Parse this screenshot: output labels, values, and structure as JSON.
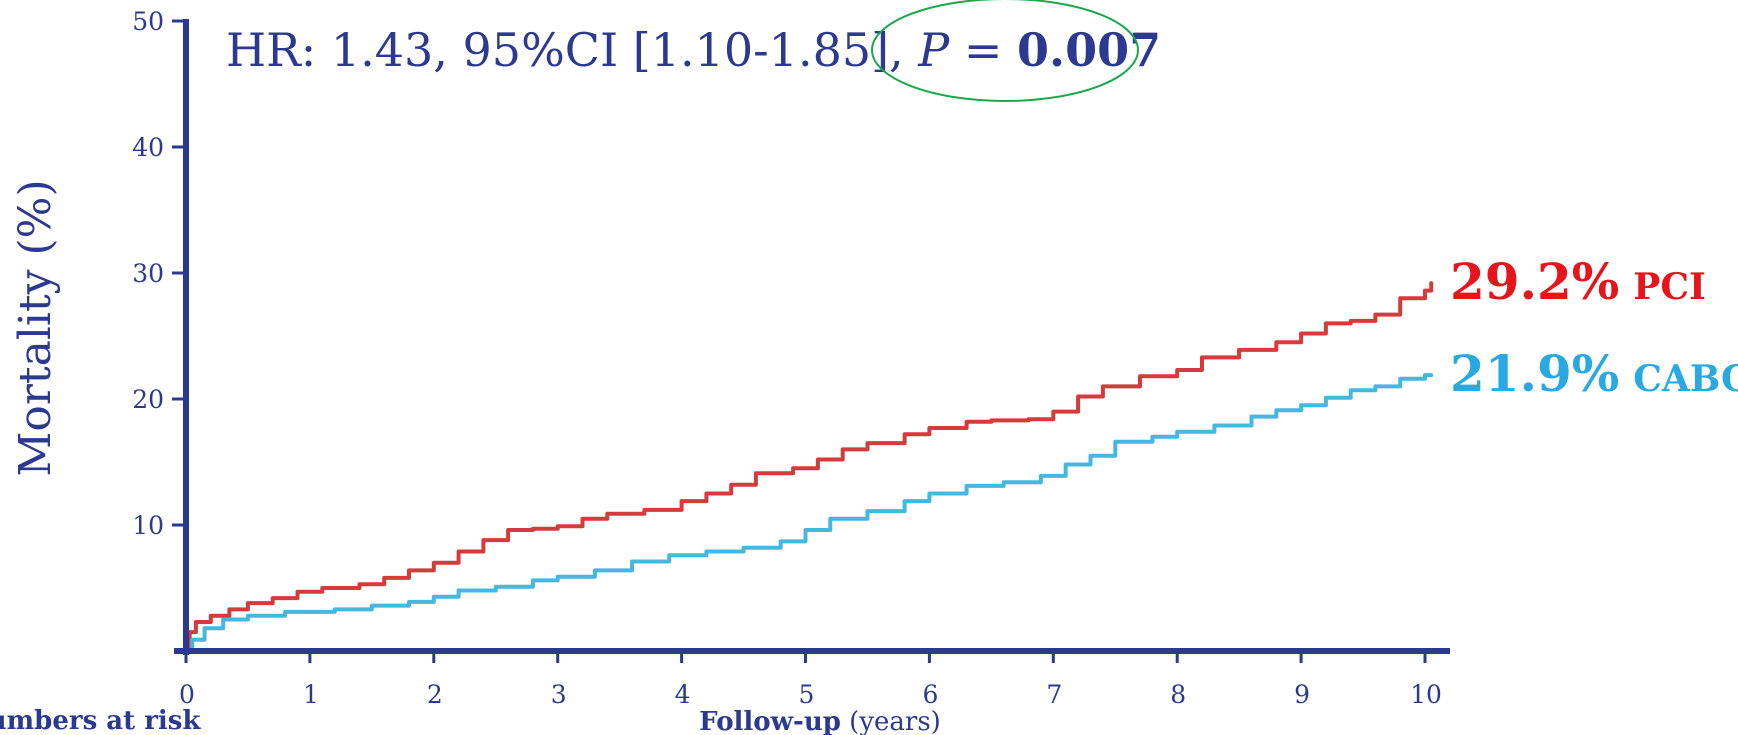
{
  "chart_data": {
    "type": "line",
    "ylabel": "Mortality (%)",
    "xlabel_bold": "Follow-up",
    "xlabel_rest": " (years)",
    "numbers_at_risk_label": "Numbers at risk",
    "xlim": [
      0,
      10
    ],
    "ylim": [
      0,
      50
    ],
    "x_ticks": [
      "0",
      "1",
      "2",
      "3",
      "4",
      "5",
      "6",
      "7",
      "8",
      "9",
      "10"
    ],
    "y_ticks": [
      {
        "value": 10,
        "label": "10"
      },
      {
        "value": 20,
        "label": "20"
      },
      {
        "value": 30,
        "label": "30"
      },
      {
        "value": 40,
        "label": "40"
      },
      {
        "value": 50,
        "label": "50"
      }
    ],
    "annotation": {
      "prefix": "HR: 1.43, 95%CI [1.10-1.85], ",
      "p_symbol": "P",
      "p_equals": " = ",
      "p_value": "0.007",
      "highlight_color": "#1aa84a"
    },
    "series": [
      {
        "name": "PCI",
        "end_label": "29.2%",
        "color": "#e8141c",
        "line_color": "#d73a3a",
        "points": [
          [
            0,
            0
          ],
          [
            0.03,
            1.5
          ],
          [
            0.08,
            2.3
          ],
          [
            0.2,
            2.8
          ],
          [
            0.35,
            3.3
          ],
          [
            0.5,
            3.8
          ],
          [
            0.7,
            4.2
          ],
          [
            0.9,
            4.7
          ],
          [
            1.1,
            5.0
          ],
          [
            1.4,
            5.3
          ],
          [
            1.6,
            5.8
          ],
          [
            1.8,
            6.4
          ],
          [
            2.0,
            7.0
          ],
          [
            2.2,
            7.9
          ],
          [
            2.4,
            8.8
          ],
          [
            2.6,
            9.6
          ],
          [
            2.8,
            9.7
          ],
          [
            3.0,
            9.9
          ],
          [
            3.2,
            10.5
          ],
          [
            3.4,
            10.9
          ],
          [
            3.7,
            11.2
          ],
          [
            4.0,
            11.9
          ],
          [
            4.2,
            12.5
          ],
          [
            4.4,
            13.2
          ],
          [
            4.6,
            14.1
          ],
          [
            4.9,
            14.5
          ],
          [
            5.1,
            15.2
          ],
          [
            5.3,
            16.0
          ],
          [
            5.5,
            16.5
          ],
          [
            5.8,
            17.2
          ],
          [
            6.0,
            17.7
          ],
          [
            6.3,
            18.2
          ],
          [
            6.5,
            18.3
          ],
          [
            6.8,
            18.4
          ],
          [
            7.0,
            19.0
          ],
          [
            7.2,
            20.2
          ],
          [
            7.4,
            21.0
          ],
          [
            7.7,
            21.8
          ],
          [
            8.0,
            22.3
          ],
          [
            8.2,
            23.3
          ],
          [
            8.5,
            23.9
          ],
          [
            8.8,
            24.5
          ],
          [
            9.0,
            25.2
          ],
          [
            9.2,
            26.0
          ],
          [
            9.4,
            26.2
          ],
          [
            9.6,
            26.7
          ],
          [
            9.8,
            28.0
          ],
          [
            10.0,
            28.6
          ],
          [
            10.05,
            29.2
          ]
        ]
      },
      {
        "name": "CABG",
        "end_label": "21.9%",
        "color": "#29a9e1",
        "line_color": "#45b8e0",
        "points": [
          [
            0,
            0
          ],
          [
            0.05,
            0.9
          ],
          [
            0.15,
            1.8
          ],
          [
            0.3,
            2.5
          ],
          [
            0.5,
            2.8
          ],
          [
            0.8,
            3.1
          ],
          [
            1.2,
            3.3
          ],
          [
            1.5,
            3.6
          ],
          [
            1.8,
            3.9
          ],
          [
            2.0,
            4.3
          ],
          [
            2.2,
            4.8
          ],
          [
            2.5,
            5.1
          ],
          [
            2.8,
            5.6
          ],
          [
            3.0,
            5.9
          ],
          [
            3.3,
            6.4
          ],
          [
            3.6,
            7.1
          ],
          [
            3.9,
            7.6
          ],
          [
            4.2,
            7.9
          ],
          [
            4.5,
            8.2
          ],
          [
            4.8,
            8.7
          ],
          [
            5.0,
            9.6
          ],
          [
            5.2,
            10.5
          ],
          [
            5.5,
            11.1
          ],
          [
            5.8,
            11.9
          ],
          [
            6.0,
            12.5
          ],
          [
            6.3,
            13.1
          ],
          [
            6.6,
            13.4
          ],
          [
            6.9,
            13.9
          ],
          [
            7.1,
            14.8
          ],
          [
            7.3,
            15.5
          ],
          [
            7.5,
            16.6
          ],
          [
            7.8,
            17.0
          ],
          [
            8.0,
            17.4
          ],
          [
            8.3,
            17.9
          ],
          [
            8.6,
            18.6
          ],
          [
            8.8,
            19.1
          ],
          [
            9.0,
            19.5
          ],
          [
            9.2,
            20.1
          ],
          [
            9.4,
            20.7
          ],
          [
            9.6,
            21.0
          ],
          [
            9.8,
            21.6
          ],
          [
            10.0,
            21.9
          ],
          [
            10.05,
            21.9
          ]
        ]
      }
    ]
  }
}
